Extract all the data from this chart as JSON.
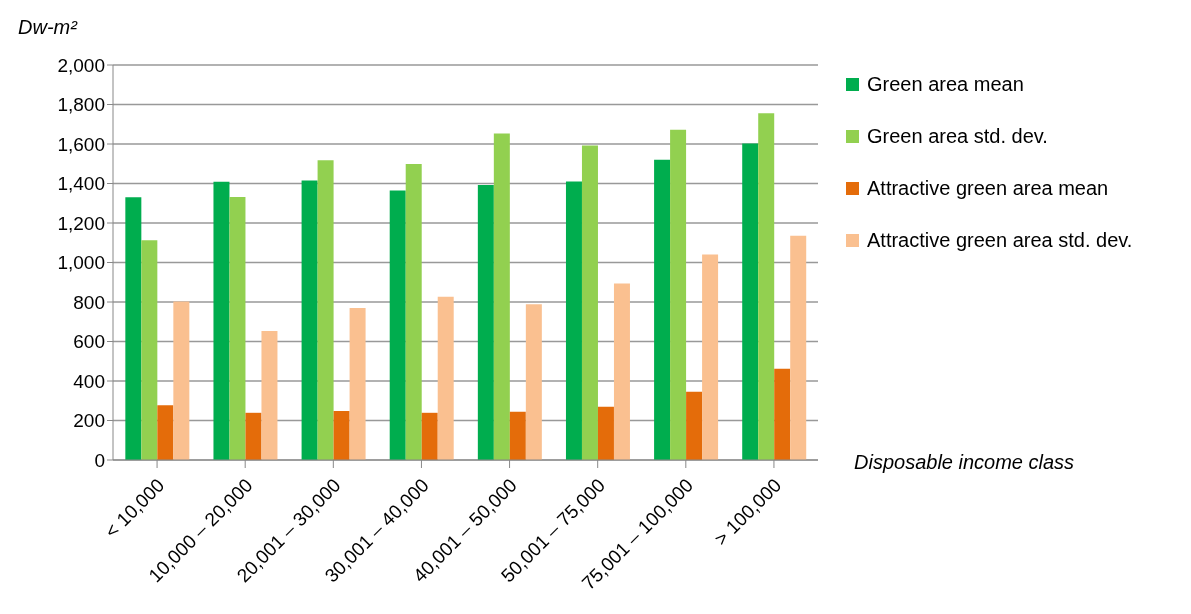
{
  "chart_data": {
    "type": "bar",
    "ylabel": "Dw-m²",
    "xlabel": "Disposable income class",
    "categories": [
      "< 10,000",
      "10,000 – 20,000",
      "20,001 – 30,000",
      "30,001 – 40,000",
      "40,001 – 50,000",
      "50,001 – 75,000",
      "75,001 – 100,000",
      "> 100,000"
    ],
    "series": [
      {
        "name": "Green area mean",
        "color": "#00ad4e",
        "values": [
          1330,
          1409,
          1415,
          1364,
          1393,
          1410,
          1520,
          1602
        ]
      },
      {
        "name": "Green area std. dev.",
        "color": "#92d050",
        "values": [
          1113,
          1332,
          1518,
          1499,
          1653,
          1593,
          1672,
          1756
        ]
      },
      {
        "name": "Attractive green area mean",
        "color": "#e46c0a",
        "values": [
          277,
          239,
          248,
          239,
          244,
          270,
          345,
          462
        ]
      },
      {
        "name": "Attractive green area std. dev.",
        "color": "#fac090",
        "values": [
          802,
          653,
          769,
          826,
          788,
          894,
          1041,
          1135
        ]
      }
    ],
    "ylim": [
      0,
      2000
    ],
    "yticks": [
      0,
      200,
      400,
      600,
      800,
      {
        "value": 1000,
        "label": "1,000"
      },
      {
        "value": 1200,
        "label": "1,200"
      },
      {
        "value": 1400,
        "label": "1,400"
      },
      {
        "value": 1600,
        "label": "1,600"
      },
      {
        "value": 1800,
        "label": "1,800"
      },
      {
        "value": 2000,
        "label": "2,000"
      }
    ],
    "grid": "y",
    "legend": "right"
  }
}
